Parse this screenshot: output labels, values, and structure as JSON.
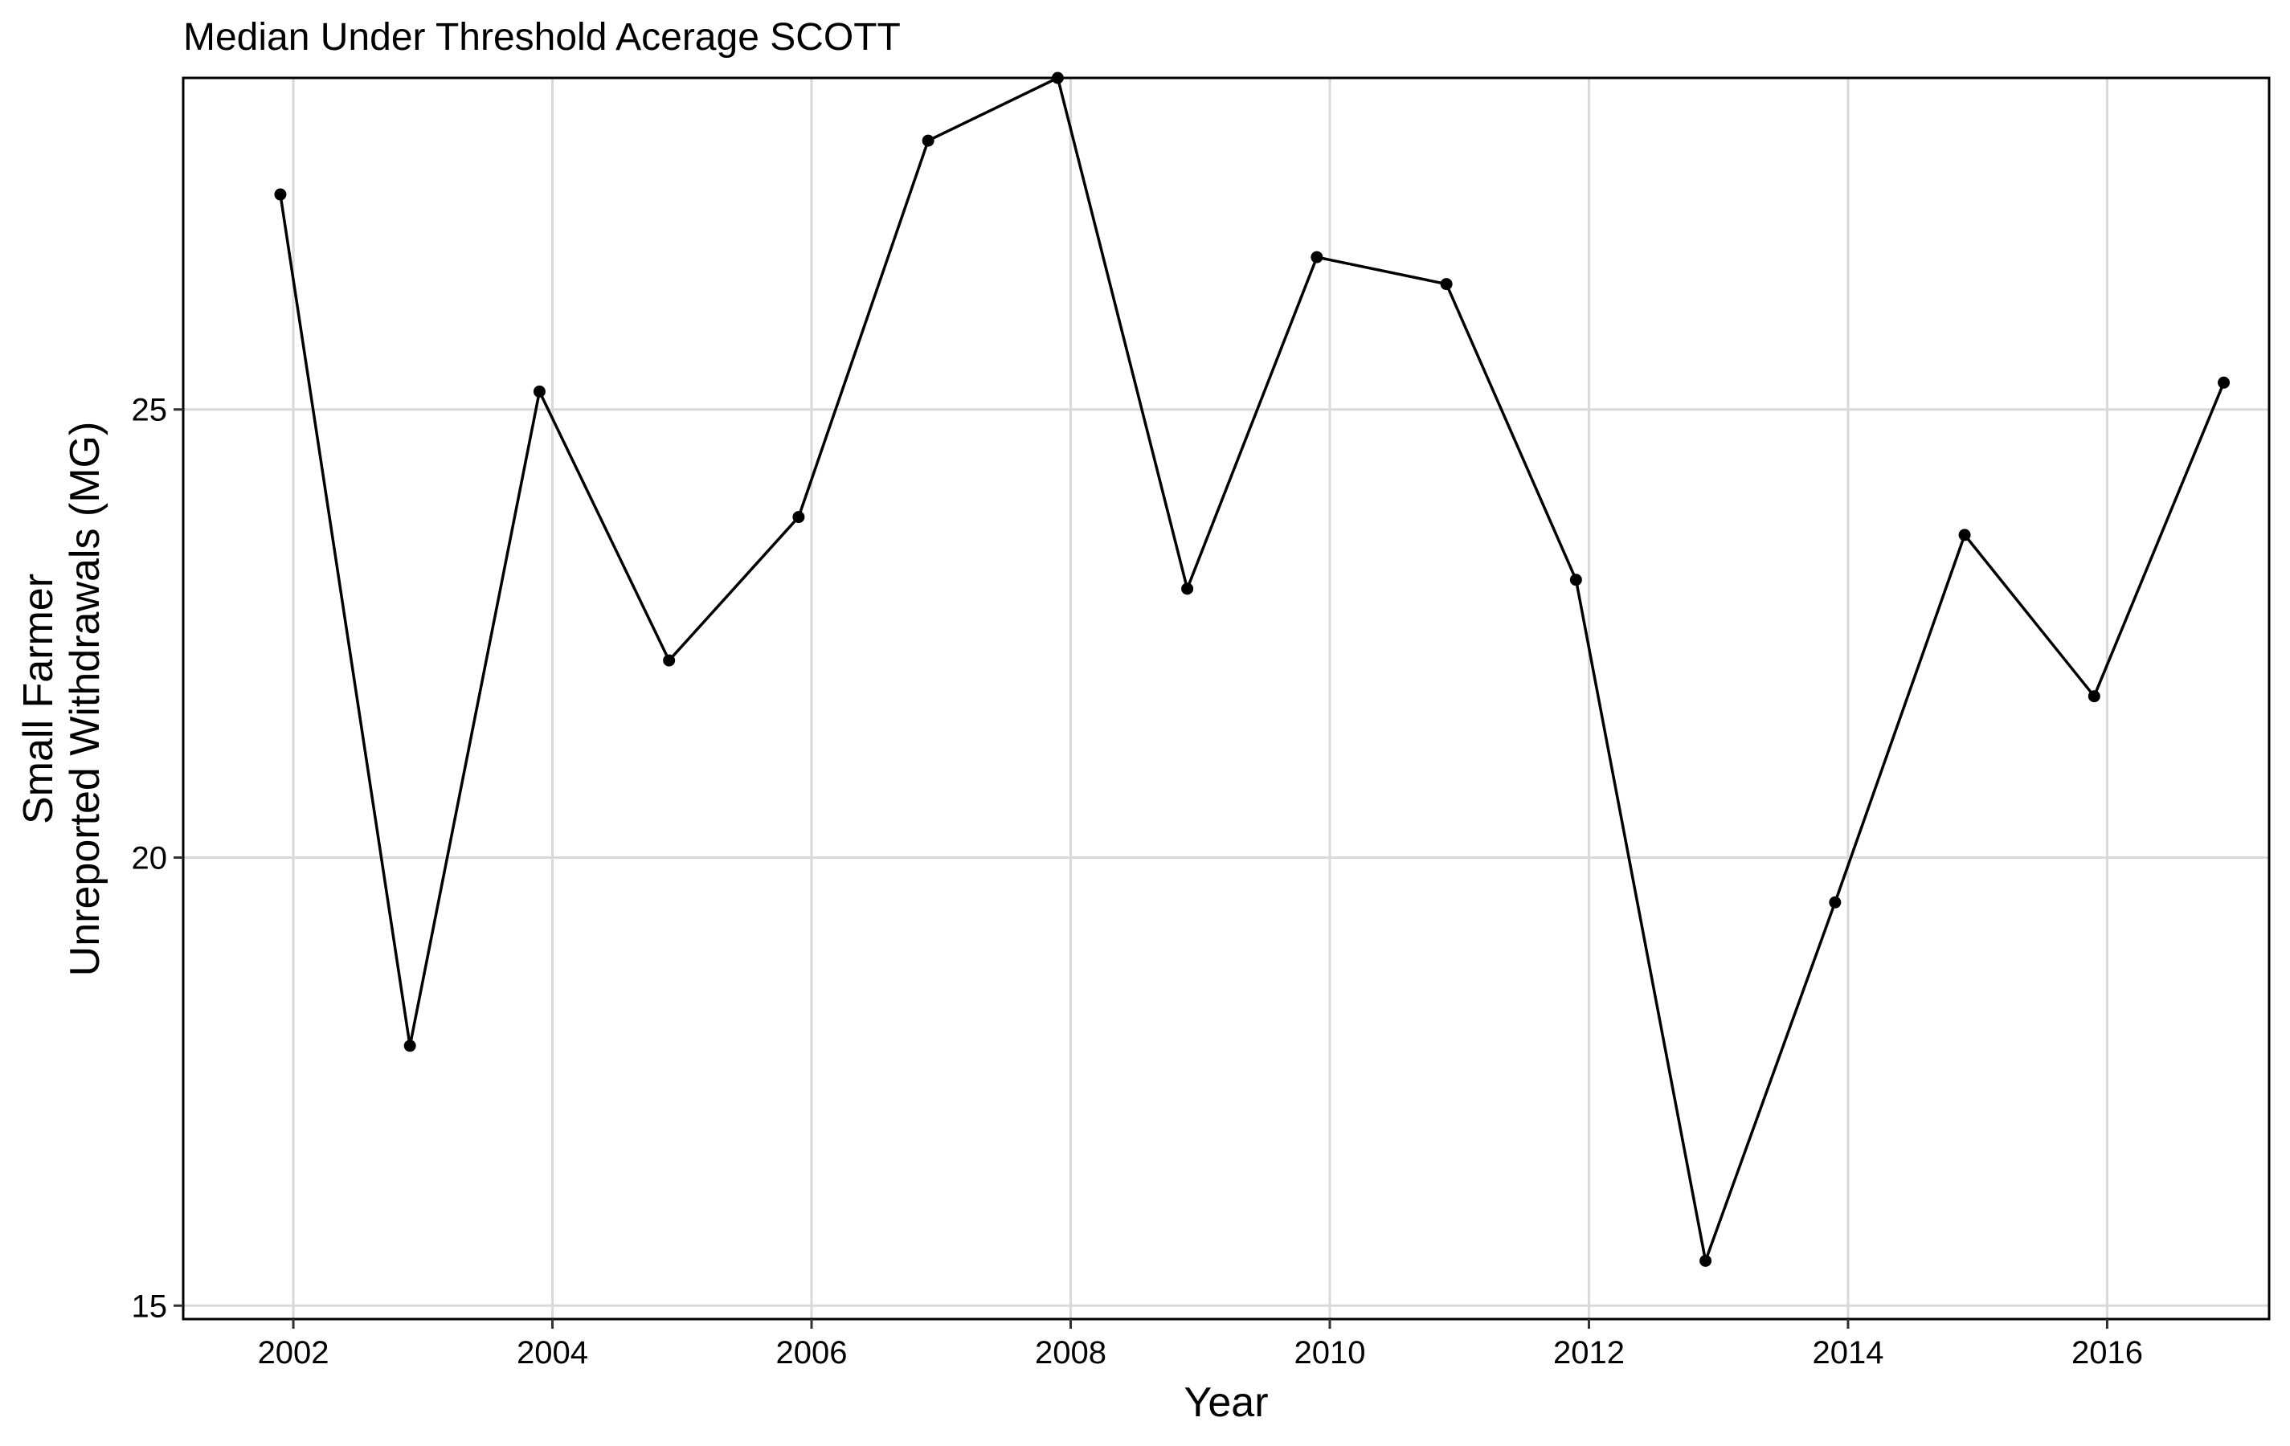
{
  "chart_data": {
    "type": "line",
    "title": "Median Under Threshold Acerage SCOTT",
    "xlabel": "Year",
    "ylabel_lines": [
      "Small Farmer",
      "Unreported Withdrawals (MG)"
    ],
    "x": [
      2001.9,
      2002.9,
      2003.9,
      2004.9,
      2005.9,
      2006.9,
      2007.9,
      2008.9,
      2009.9,
      2010.9,
      2011.9,
      2012.9,
      2013.9,
      2014.9,
      2015.9,
      2016.9
    ],
    "series": [
      {
        "values": [
          27.4,
          17.9,
          25.2,
          22.2,
          23.8,
          28.0,
          28.7,
          23.0,
          26.7,
          26.4,
          23.1,
          15.5,
          19.5,
          23.6,
          21.8,
          25.3
        ]
      }
    ],
    "xlim": [
      2001.15,
      2017.25
    ],
    "ylim": [
      14.85,
      28.7
    ],
    "x_ticks": [
      2002,
      2004,
      2006,
      2008,
      2010,
      2012,
      2014,
      2016
    ],
    "x_tick_labels": [
      "2002",
      "2004",
      "2006",
      "2008",
      "2010",
      "2012",
      "2014",
      "2016"
    ],
    "y_ticks": [
      15,
      20,
      25
    ],
    "y_tick_labels": [
      "15",
      "20",
      "25"
    ],
    "grid": true,
    "colors": {
      "line": "#000000",
      "point": "#000000",
      "grid": "#d9d9d9",
      "frame": "#000000",
      "background": "#ffffff"
    }
  }
}
